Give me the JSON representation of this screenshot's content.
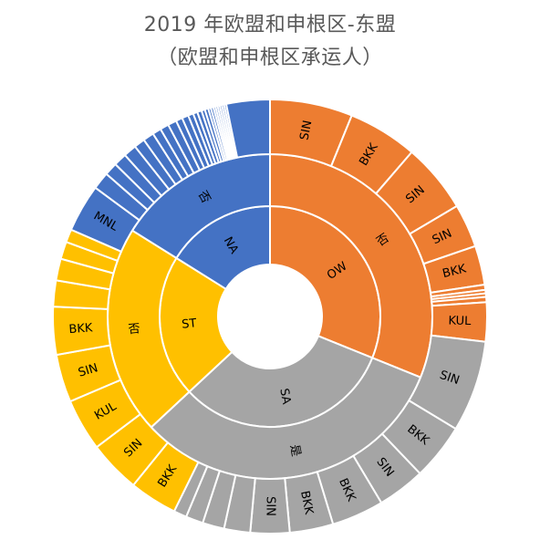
{
  "chart_data": {
    "type": "sunburst",
    "title": "2019 年欧盟和申根区-东盟",
    "subtitle": "（欧盟和申根区承运人）",
    "colors": {
      "OW": "#ED7D31",
      "SA": "#A5A5A5",
      "ST": "#FFC000",
      "NA": "#4472C4",
      "border": "#ffffff"
    },
    "rings": [
      {
        "level": "alliance",
        "segments": [
          {
            "label": "OW",
            "group": "OW",
            "value": 112
          },
          {
            "label": "SA",
            "group": "SA",
            "value": 115
          },
          {
            "label": "ST",
            "group": "ST",
            "value": 75
          },
          {
            "label": "NA",
            "group": "NA",
            "value": 58
          }
        ]
      },
      {
        "level": "answer",
        "segments": [
          {
            "label": "否",
            "group": "OW",
            "value": 112
          },
          {
            "label": "是",
            "group": "SA",
            "value": 115
          },
          {
            "label": "否",
            "group": "ST",
            "value": 75
          },
          {
            "label": "否",
            "group": "NA",
            "value": 58
          }
        ]
      },
      {
        "level": "airport",
        "segments": [
          {
            "label": "SIN",
            "group": "OW",
            "value": 19
          },
          {
            "label": "BKK",
            "group": "OW",
            "value": 16
          },
          {
            "label": "SIN",
            "group": "OW",
            "value": 16
          },
          {
            "label": "SIN",
            "group": "OW",
            "value": 10
          },
          {
            "label": "BKK",
            "group": "OW",
            "value": 9
          },
          {
            "label": "",
            "group": "OW",
            "value": 1.2
          },
          {
            "label": "",
            "group": "OW",
            "value": 0.8
          },
          {
            "label": "",
            "group": "OW",
            "value": 0.8
          },
          {
            "label": "",
            "group": "OW",
            "value": 1.2
          },
          {
            "label": "KUL",
            "group": "OW",
            "value": 9
          },
          {
            "label": "SIN",
            "group": "SA",
            "value": 21
          },
          {
            "label": "BKK",
            "group": "SA",
            "value": 13
          },
          {
            "label": "SIN",
            "group": "SA",
            "value": 11
          },
          {
            "label": "BKK",
            "group": "SA",
            "value": 12
          },
          {
            "label": "BKK",
            "group": "SA",
            "value": 10
          },
          {
            "label": "SIN",
            "group": "SA",
            "value": 9
          },
          {
            "label": "",
            "group": "SA",
            "value": 6
          },
          {
            "label": "",
            "group": "SA",
            "value": 5
          },
          {
            "label": "",
            "group": "SA",
            "value": 4
          },
          {
            "label": "",
            "group": "SA",
            "value": 3
          },
          {
            "label": "BKK",
            "group": "ST",
            "value": 11
          },
          {
            "label": "SIN",
            "group": "ST",
            "value": 12
          },
          {
            "label": "KUL",
            "group": "ST",
            "value": 12
          },
          {
            "label": "SIN",
            "group": "ST",
            "value": 11
          },
          {
            "label": "BKK",
            "group": "ST",
            "value": 11
          },
          {
            "label": "",
            "group": "ST",
            "value": 6
          },
          {
            "label": "",
            "group": "ST",
            "value": 5
          },
          {
            "label": "",
            "group": "ST",
            "value": 4
          },
          {
            "label": "",
            "group": "ST",
            "value": 3
          },
          {
            "label": "MNL",
            "group": "NA",
            "value": 11
          },
          {
            "label": "",
            "group": "NA",
            "value": 4
          },
          {
            "label": "",
            "group": "NA",
            "value": 3
          },
          {
            "label": "",
            "group": "NA",
            "value": 3
          },
          {
            "label": "",
            "group": "NA",
            "value": 3
          },
          {
            "label": "",
            "group": "NA",
            "value": 2.5
          },
          {
            "label": "",
            "group": "NA",
            "value": 2.5
          },
          {
            "label": "",
            "group": "NA",
            "value": 2
          },
          {
            "label": "",
            "group": "NA",
            "value": 2
          },
          {
            "label": "",
            "group": "NA",
            "value": 2
          },
          {
            "label": "",
            "group": "NA",
            "value": 1.5
          },
          {
            "label": "",
            "group": "NA",
            "value": 1.5
          },
          {
            "label": "",
            "group": "NA",
            "value": 1.2
          },
          {
            "label": "",
            "group": "NA",
            "value": 1
          },
          {
            "label": "",
            "group": "NA",
            "value": 1
          },
          {
            "label": "",
            "group": "NA",
            "value": 0.8
          },
          {
            "label": "",
            "group": "NA",
            "value": 0.8
          },
          {
            "label": "",
            "group": "NA",
            "value": 0.6
          },
          {
            "label": "",
            "group": "NA",
            "value": 0.6
          },
          {
            "label": "",
            "group": "NA",
            "value": 0.5
          },
          {
            "label": "",
            "group": "NA",
            "value": 0.5
          },
          {
            "label": "",
            "group": "NA",
            "value": 0.5
          },
          {
            "label": "",
            "group": "NA",
            "value": 0.5
          },
          {
            "label": "",
            "group": "NA",
            "value": 0.5
          },
          {
            "label": "",
            "group": "NA",
            "value": 0.5
          },
          {
            "label": "",
            "group": "NA",
            "value": 10
          }
        ]
      }
    ]
  }
}
